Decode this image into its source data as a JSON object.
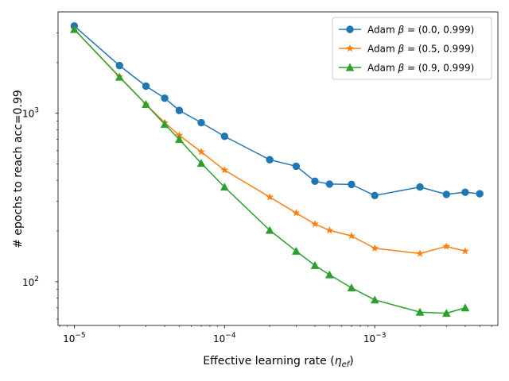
{
  "chart_data": {
    "type": "line",
    "xscale": "log",
    "yscale": "log",
    "xlabel": "Effective learning rate (η_ef)",
    "xlabel_main": "Effective learning rate (",
    "xlabel_sym": "η",
    "xlabel_sub": "ef",
    "xlabel_close": ")",
    "ylabel": "# epochs to reach acc=0.99",
    "xlim": [
      7.8e-06,
      0.0066
    ],
    "ylim": [
      55,
      4000
    ],
    "xticks": [
      {
        "value": 1e-05,
        "base": "10",
        "exp": "−5"
      },
      {
        "value": 0.0001,
        "base": "10",
        "exp": "−4"
      },
      {
        "value": 0.001,
        "base": "10",
        "exp": "−3"
      }
    ],
    "yticks": [
      {
        "value": 100,
        "base": "10",
        "exp": "2"
      },
      {
        "value": 1000,
        "base": "10",
        "exp": "3"
      }
    ],
    "legend_position": "top-right",
    "series": [
      {
        "name": "Adam β=(0.0, 0.999)",
        "label_prefix": "Adam ",
        "label_sym": "β",
        "label_rest": " = (0.0, 0.999)",
        "color": "#1f77b4",
        "marker": "circle",
        "x": [
          1e-05,
          2e-05,
          3e-05,
          4e-05,
          5e-05,
          7e-05,
          0.0001,
          0.0002,
          0.0003,
          0.0004,
          0.0005,
          0.0007,
          0.001,
          0.002,
          0.003,
          0.004,
          0.005
        ],
        "y": [
          3300,
          1920,
          1450,
          1230,
          1040,
          880,
          730,
          530,
          485,
          395,
          380,
          378,
          325,
          365,
          330,
          340,
          333
        ]
      },
      {
        "name": "Adam β=(0.5, 0.999)",
        "label_prefix": "Adam ",
        "label_sym": "β",
        "label_rest": " = (0.5, 0.999)",
        "color": "#ff7f0e",
        "marker": "star",
        "x": [
          1e-05,
          2e-05,
          3e-05,
          4e-05,
          5e-05,
          7e-05,
          0.0001,
          0.0002,
          0.0003,
          0.0004,
          0.0005,
          0.0007,
          0.001,
          0.002,
          0.003,
          0.004
        ],
        "y": [
          3150,
          1650,
          1130,
          880,
          740,
          590,
          460,
          318,
          256,
          220,
          202,
          187,
          158,
          147,
          162,
          152
        ]
      },
      {
        "name": "Adam β=(0.9, 0.999)",
        "label_prefix": "Adam ",
        "label_sym": "β",
        "label_rest": " = (0.9, 0.999)",
        "color": "#2ca02c",
        "marker": "triangle",
        "x": [
          1e-05,
          2e-05,
          3e-05,
          4e-05,
          5e-05,
          7e-05,
          0.0001,
          0.0002,
          0.0003,
          0.0004,
          0.0005,
          0.0007,
          0.001,
          0.002,
          0.003,
          0.004
        ],
        "y": [
          3150,
          1640,
          1130,
          860,
          700,
          505,
          365,
          202,
          152,
          125,
          110,
          92,
          78,
          66,
          65,
          70
        ]
      }
    ]
  }
}
